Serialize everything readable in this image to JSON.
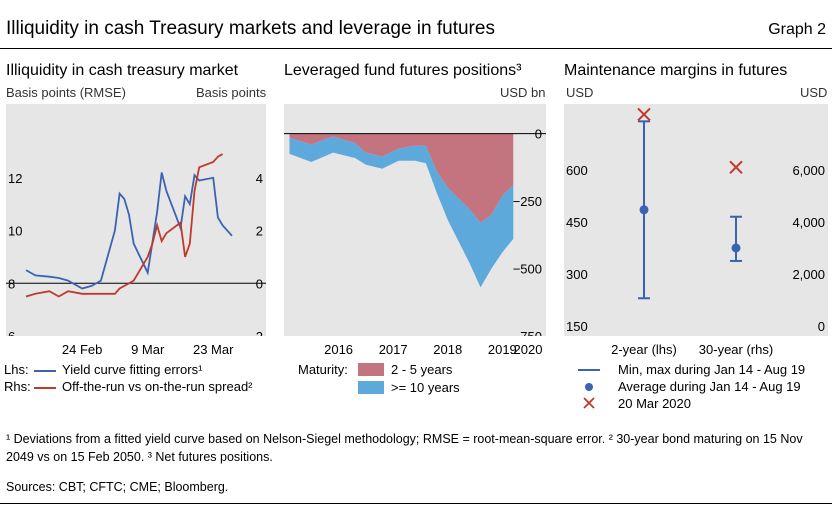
{
  "header": {
    "title": "Illiquidity in cash Treasury markets and leverage in futures",
    "graph_number": "Graph 2"
  },
  "footnotes": {
    "note1": "¹  Deviations from a fitted yield curve based on Nelson-Siegel methodology; RMSE = root-mean-square error.   ²  30-year bond maturing on 15 Nov 2049 vs on 15 Feb 2050.   ³  Net futures positions.",
    "sources": "Sources: CBT; CFTC; CME; Bloomberg."
  },
  "chart_data": [
    {
      "type": "line",
      "title": "Illiquidity in cash treasury market",
      "ylabel_left": "Basis points (RMSE)",
      "ylabel_right": "Basis points",
      "x_ticks": [
        "24 Feb",
        "9 Mar",
        "23 Mar"
      ],
      "y_left": {
        "ticks": [
          6,
          8,
          10,
          12
        ],
        "lim": [
          6,
          14.8
        ]
      },
      "y_right": {
        "ticks": [
          -2,
          0,
          2,
          4
        ],
        "lim": [
          -2,
          6.8
        ]
      },
      "legend_prefix": [
        "Lhs:",
        "Rhs:"
      ],
      "series": [
        {
          "name": "Yield curve fitting errors¹",
          "axis": "left",
          "color": "#3b63b3",
          "x": [
            "12 Feb",
            "14 Feb",
            "17 Feb",
            "19 Feb",
            "21 Feb",
            "24 Feb",
            "26 Feb",
            "28 Feb",
            "2 Mar",
            "3 Mar",
            "4 Mar",
            "5 Mar",
            "6 Mar",
            "9 Mar",
            "11 Mar",
            "12 Mar",
            "13 Mar",
            "16 Mar",
            "17 Mar",
            "18 Mar",
            "19 Mar",
            "20 Mar",
            "23 Mar",
            "24 Mar",
            "25 Mar",
            "27 Mar"
          ],
          "y": [
            8.5,
            8.3,
            8.25,
            8.2,
            8.1,
            7.8,
            7.9,
            8.1,
            10.0,
            11.4,
            11.2,
            10.6,
            9.5,
            8.4,
            10.7,
            12.2,
            11.5,
            10.1,
            11.3,
            11.0,
            12.1,
            11.9,
            12.0,
            10.5,
            10.2,
            9.8
          ]
        },
        {
          "name": "Off-the-run vs on-the-run spread²",
          "axis": "right",
          "color": "#c0392b",
          "x": [
            "12 Feb",
            "14 Feb",
            "17 Feb",
            "19 Feb",
            "21 Feb",
            "24 Feb",
            "26 Feb",
            "28 Feb",
            "2 Mar",
            "3 Mar",
            "5 Mar",
            "6 Mar",
            "9 Mar",
            "10 Mar",
            "11 Mar",
            "12 Mar",
            "13 Mar",
            "16 Mar",
            "17 Mar",
            "18 Mar",
            "19 Mar",
            "20 Mar",
            "23 Mar",
            "24 Mar",
            "25 Mar"
          ],
          "y": [
            -0.5,
            -0.4,
            -0.3,
            -0.5,
            -0.3,
            -0.4,
            -0.4,
            -0.4,
            -0.4,
            -0.2,
            0,
            0.1,
            1.0,
            1.5,
            2.2,
            1.6,
            1.9,
            2.3,
            1.0,
            1.5,
            3.5,
            4.4,
            4.6,
            4.8,
            4.9
          ]
        }
      ]
    },
    {
      "type": "area",
      "title": "Leveraged fund futures positions³",
      "ylabel_right": "USD bn",
      "x_ticks": [
        "2016",
        "2017",
        "2018",
        "2019",
        "2020"
      ],
      "y_ticks": [
        0,
        -250,
        -500,
        -750
      ],
      "ylim": [
        -750,
        110
      ],
      "legend_title": "Maturity:",
      "series": [
        {
          "name": "2 - 5 years",
          "color": "#c4747f",
          "x": [
            2015.6,
            2016.0,
            2016.4,
            2016.8,
            2017.0,
            2017.3,
            2017.6,
            2017.9,
            2018.1,
            2018.3,
            2018.5,
            2018.7,
            2018.9,
            2019.1,
            2019.3,
            2019.5,
            2019.7
          ],
          "y": [
            -15,
            -40,
            -10,
            -35,
            -70,
            -85,
            -55,
            -45,
            -45,
            -140,
            -200,
            -240,
            -280,
            -330,
            -300,
            -230,
            -190
          ]
        },
        {
          "name": ">= 10 years",
          "color": "#5ea9dc",
          "x": [
            2015.6,
            2016.0,
            2016.4,
            2016.8,
            2017.0,
            2017.3,
            2017.6,
            2017.9,
            2018.1,
            2018.3,
            2018.5,
            2018.7,
            2018.9,
            2019.1,
            2019.3,
            2019.5,
            2019.7
          ],
          "y": [
            -60,
            -65,
            -60,
            -55,
            -45,
            -45,
            -45,
            -55,
            -65,
            -80,
            -120,
            -160,
            -200,
            -240,
            -200,
            -210,
            -200
          ]
        }
      ]
    },
    {
      "type": "scatter",
      "title": "Maintenance margins in futures",
      "ylabel_left": "USD",
      "ylabel_right": "USD",
      "categories": [
        "2-year (lhs)",
        "30-year (rhs)"
      ],
      "y_left": {
        "ticks": [
          150,
          300,
          450,
          600
        ],
        "lim": [
          150,
          790
        ]
      },
      "y_right": {
        "ticks": [
          0,
          2000,
          4000,
          6000
        ],
        "lim": [
          0,
          8533
        ]
      },
      "series": [
        {
          "name": "Min, max during Jan 14 - Aug 19",
          "marker": "range",
          "color": "#3b63b3",
          "values": [
            [
              230,
              740
            ],
            [
              2500,
              4200
            ]
          ]
        },
        {
          "name": "Average during Jan 14 - Aug 19",
          "marker": "dot",
          "color": "#3b63b3",
          "values": [
            485,
            3000
          ]
        },
        {
          "name": "20 Mar 2020",
          "marker": "x",
          "color": "#c0392b",
          "values": [
            760,
            6100
          ]
        }
      ]
    }
  ]
}
